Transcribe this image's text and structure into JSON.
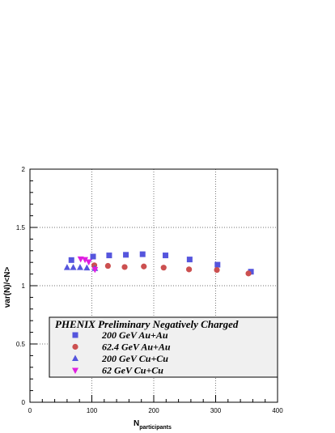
{
  "chart_data": {
    "type": "scatter",
    "title": "",
    "xlabel": "N",
    "xlabel_subscript": "participants",
    "ylabel": "var(N)/<N>",
    "xlim": [
      0,
      400
    ],
    "ylim": [
      0,
      2
    ],
    "x_ticks": [
      "0",
      "100",
      "200",
      "300",
      "400"
    ],
    "y_ticks": [
      "0",
      "0.5",
      "1",
      "1.5",
      "2"
    ],
    "grid": "dotted",
    "legend_title": "PHENIX Preliminary Negatively Charged",
    "legend_position": "lower-left",
    "series": [
      {
        "name": "200 GeV Au+Au",
        "marker": "square",
        "color": "#5555dd",
        "points": [
          [
            67,
            1.22
          ],
          [
            102,
            1.25
          ],
          [
            128,
            1.26
          ],
          [
            155,
            1.265
          ],
          [
            182,
            1.27
          ],
          [
            219,
            1.26
          ],
          [
            258,
            1.225
          ],
          [
            303,
            1.18
          ],
          [
            357,
            1.12
          ]
        ]
      },
      {
        "name": "62.4 GeV Au+Au",
        "marker": "circle",
        "color": "#cc5050",
        "points": [
          [
            104,
            1.175
          ],
          [
            126,
            1.17
          ],
          [
            153,
            1.16
          ],
          [
            184,
            1.165
          ],
          [
            216,
            1.155
          ],
          [
            257,
            1.14
          ],
          [
            302,
            1.135
          ],
          [
            353,
            1.105
          ]
        ]
      },
      {
        "name": "200 GeV Cu+Cu",
        "marker": "triangle-up",
        "color": "#5555dd",
        "points": [
          [
            60,
            1.155
          ],
          [
            70,
            1.155
          ],
          [
            81,
            1.155
          ],
          [
            92,
            1.152
          ],
          [
            105,
            1.148
          ]
        ]
      },
      {
        "name": "62 GeV Cu+Cu",
        "marker": "triangle-down",
        "color": "#e01ee0",
        "points": [
          [
            82,
            1.23
          ],
          [
            89,
            1.225
          ],
          [
            95,
            1.205
          ],
          [
            105,
            1.14
          ]
        ]
      }
    ]
  }
}
